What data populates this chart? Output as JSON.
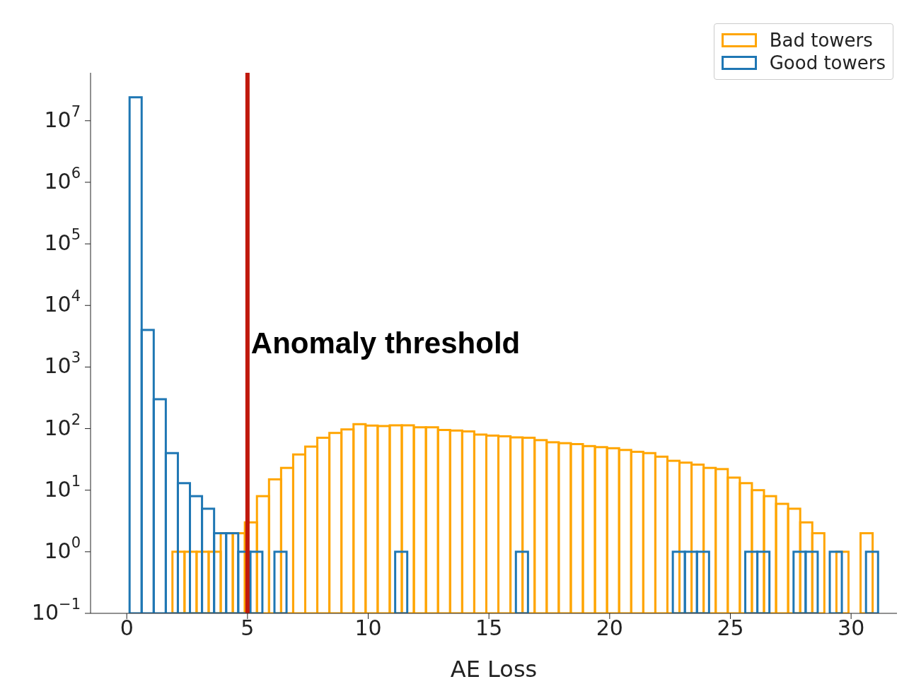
{
  "chart_data": {
    "type": "histogram",
    "xlabel": "AE Loss",
    "bins": [
      0,
      0.5,
      1,
      1.5,
      2,
      2.5,
      3,
      3.5,
      4,
      4.5,
      5,
      5.5,
      6,
      6.5,
      7,
      7.5,
      8,
      8.5,
      9,
      9.5,
      10,
      10.5,
      11,
      11.5,
      12,
      12.5,
      13,
      13.5,
      14,
      14.5,
      15,
      15.5,
      16,
      16.5,
      17,
      17.5,
      18,
      18.5,
      19,
      19.5,
      20,
      20.5,
      21,
      21.5,
      22,
      22.5,
      23,
      23.5,
      24,
      24.5,
      25,
      25.5,
      26,
      26.5,
      27,
      27.5,
      28,
      28.5,
      29,
      29.5,
      30,
      30.5,
      31
    ],
    "series": [
      {
        "name": "Bad towers",
        "color": "#ffa500",
        "values": [
          null,
          null,
          null,
          null,
          1,
          1,
          1,
          1,
          2,
          2,
          3,
          8,
          15,
          23,
          38,
          51,
          71,
          85,
          97,
          118,
          112,
          110,
          113,
          113,
          105,
          105,
          95,
          93,
          90,
          80,
          77,
          75,
          72,
          71,
          65,
          60,
          58,
          56,
          52,
          50,
          48,
          45,
          42,
          40,
          35,
          30,
          28,
          26,
          23,
          22,
          16,
          13,
          10,
          8,
          6,
          5,
          3,
          2,
          null,
          1,
          null,
          2
        ]
      },
      {
        "name": "Good towers",
        "color": "#1f77b4",
        "values": [
          24000000,
          4000,
          300,
          40,
          13,
          8,
          5,
          2,
          2,
          1,
          1,
          null,
          1,
          null,
          null,
          null,
          null,
          null,
          null,
          null,
          null,
          null,
          1,
          null,
          null,
          null,
          null,
          null,
          null,
          null,
          null,
          null,
          1,
          null,
          null,
          null,
          null,
          null,
          null,
          null,
          null,
          null,
          null,
          null,
          null,
          1,
          1,
          1,
          null,
          null,
          null,
          1,
          1,
          null,
          null,
          1,
          1,
          null,
          1,
          null,
          null,
          1
        ]
      }
    ],
    "xlim": [
      -1.5,
      31.9
    ],
    "xticks": [
      0,
      5,
      10,
      15,
      20,
      25,
      30
    ],
    "log": "y",
    "ylim": [
      0.1,
      60000000
    ],
    "yticks": [
      {
        "value": 0.1,
        "label": "10$^{−1}$"
      },
      {
        "value": 1,
        "label": "10$^{0}$"
      },
      {
        "value": 10,
        "label": "10$^{1}$"
      },
      {
        "value": 100,
        "label": "10$^{2}$"
      },
      {
        "value": 1000,
        "label": "10$^{3}$"
      },
      {
        "value": 10000,
        "label": "10$^{4}$"
      },
      {
        "value": 100000,
        "label": "10$^{5}$"
      },
      {
        "value": 1000000,
        "label": "10$^{6}$"
      },
      {
        "value": 10000000,
        "label": "10$^{7}$"
      }
    ],
    "ref_lines": [
      {
        "axis": "x",
        "value": 5,
        "label": "Anomaly threshold",
        "color": "#c0180c"
      }
    ],
    "legend": "top right",
    "grid": false
  }
}
